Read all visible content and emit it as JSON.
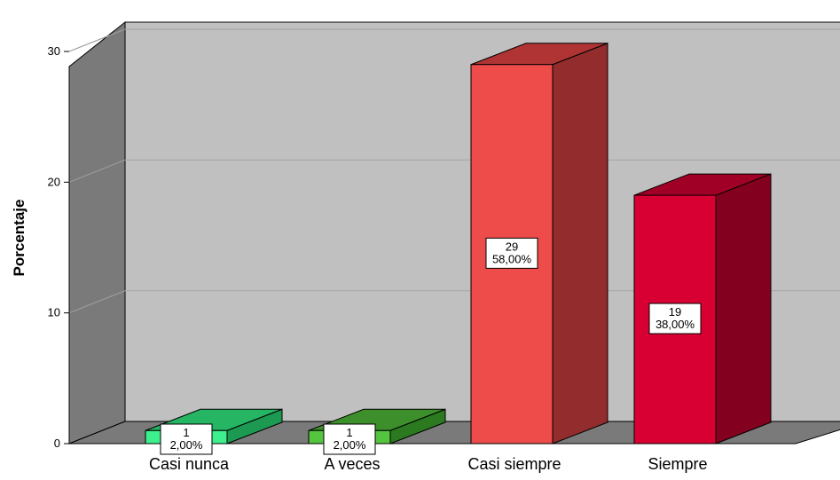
{
  "chart_data": {
    "type": "bar",
    "title": "",
    "xlabel": "",
    "ylabel": "Porcentaje",
    "ylim": [
      0,
      30
    ],
    "yticks": [
      0,
      10,
      20,
      30
    ],
    "grid": true,
    "style": "3d",
    "categories": [
      "Casi nunca",
      "A veces",
      "Casi siempre",
      "Siempre"
    ],
    "values": [
      1,
      1,
      29,
      19
    ],
    "percents": [
      "2,00%",
      "2,00%",
      "58,00%",
      "38,00%"
    ],
    "colors": [
      {
        "front": "#3ef08d",
        "side": "#1c9a52",
        "top": "#25b563"
      },
      {
        "front": "#55c43e",
        "side": "#2b7a1f",
        "top": "#3c8f2a"
      },
      {
        "front": "#ee4b4b",
        "side": "#932c2c",
        "top": "#b03434"
      },
      {
        "front": "#d80032",
        "side": "#83001e",
        "top": "#a10026"
      }
    ],
    "wall_colors": {
      "back": "#c0c0c0",
      "side": "#7a7a7a",
      "floor": "#7a7a7a",
      "grid": "#a8a8a8"
    }
  }
}
